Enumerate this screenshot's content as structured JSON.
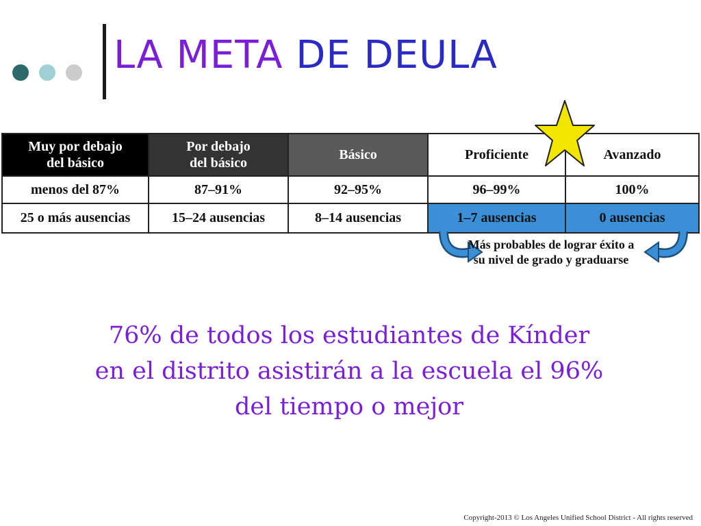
{
  "title": {
    "part1": "LA META",
    "part2": " DE DEULA"
  },
  "colors": {
    "title_part1": "#7a1fd6",
    "title_part2": "#2a2ac4",
    "statement": "#7a1fd6",
    "dots": [
      "#2e6a6a",
      "#9fd1d4",
      "#cccccc"
    ],
    "blue_cells": "#3a8fd6",
    "star": "#f2e600"
  },
  "table": {
    "headers": [
      [
        "Muy por debajo",
        "del básico"
      ],
      [
        "Por debajo",
        "del básico"
      ],
      [
        "Básico"
      ],
      [
        "Proficiente"
      ],
      [
        "Avanzado"
      ]
    ],
    "percentages": [
      "menos del 87%",
      "87–91%",
      "92–95%",
      "96–99%",
      "100%"
    ],
    "absences": [
      "25 o más ausencias",
      "15–24 ausencias",
      "8–14 ausencias",
      "1–7 ausencias",
      "0 ausencias"
    ]
  },
  "note": {
    "line1": "Más probables de lograr éxito a",
    "line2": "su nivel de grado y graduarse"
  },
  "star_icon": "star-icon",
  "statement": {
    "line1": "76% de todos los estudiantes de Kínder",
    "line2": "en el distrito asistirán a la escuela el 96%",
    "line3": "del tiempo o mejor"
  },
  "copyright": "Copyright-2013 © Los Angeles Unified School District - All rights reserved"
}
